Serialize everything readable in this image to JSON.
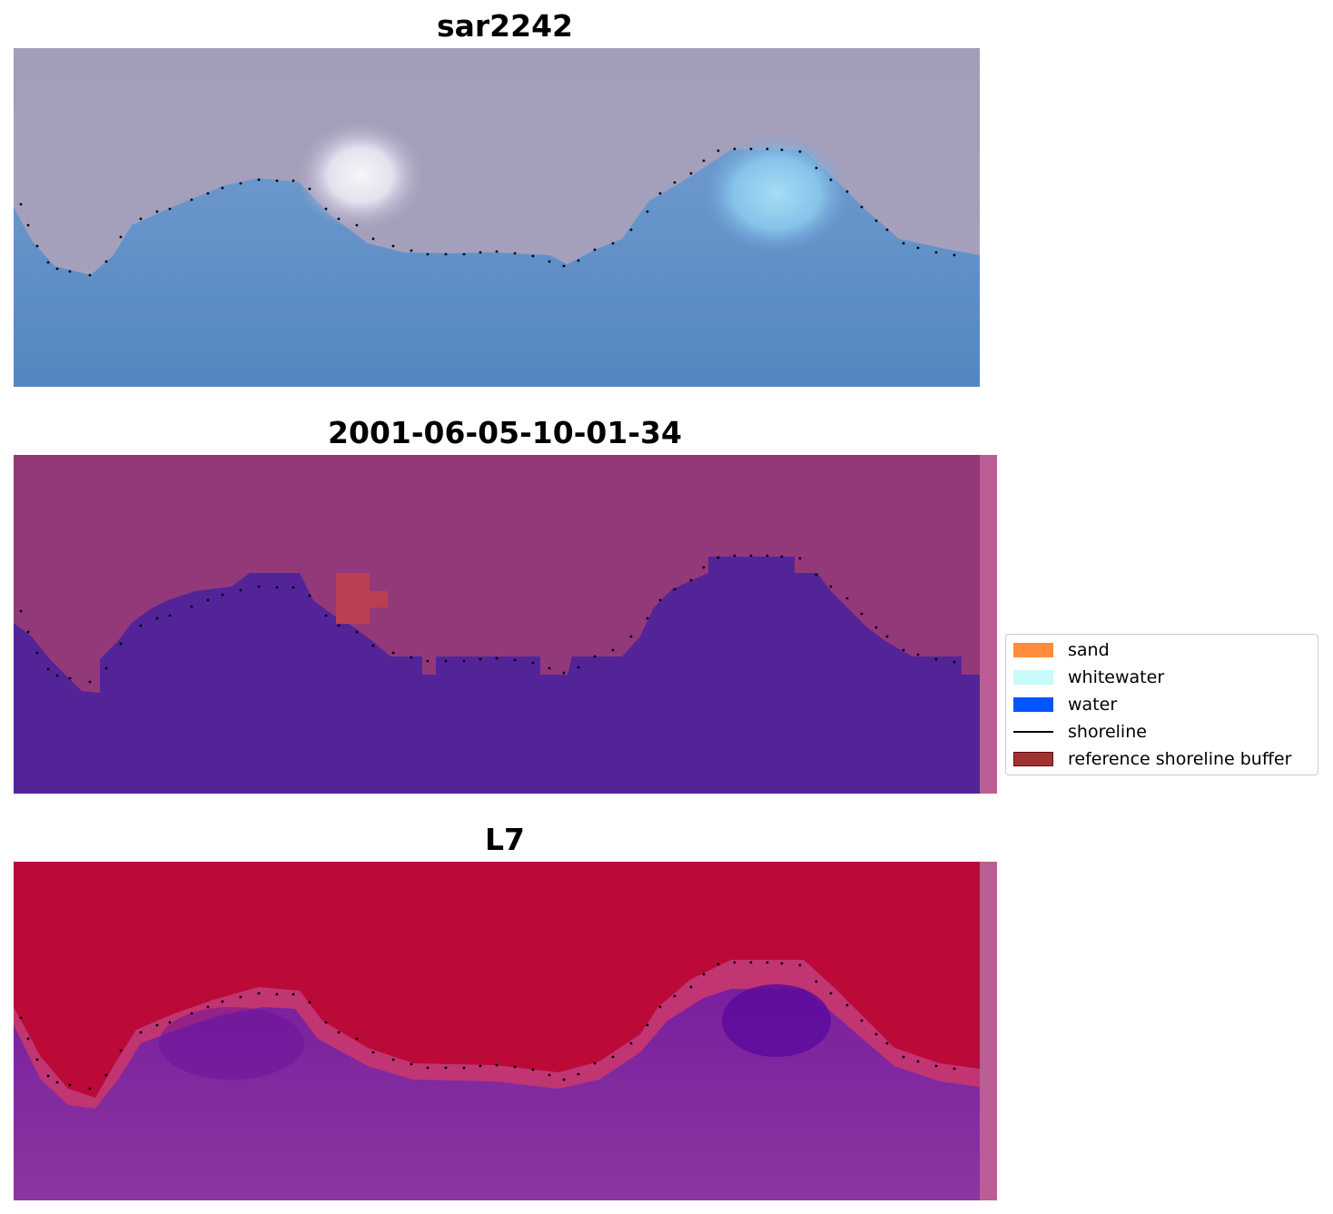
{
  "panels": [
    {
      "title": "sar2242"
    },
    {
      "title": "2001-06-05-10-01-34"
    },
    {
      "title": "L7"
    }
  ],
  "legend": {
    "items": [
      {
        "label": "sand",
        "color": "#ff8c3c",
        "kind": "patch"
      },
      {
        "label": "whitewater",
        "color": "#c8fafa",
        "kind": "patch"
      },
      {
        "label": "water",
        "color": "#0055ff",
        "kind": "patch"
      },
      {
        "label": "shoreline",
        "color": "#000000",
        "kind": "line"
      },
      {
        "label": "reference shoreline buffer",
        "color": "#a03232",
        "kind": "patch"
      }
    ]
  }
}
